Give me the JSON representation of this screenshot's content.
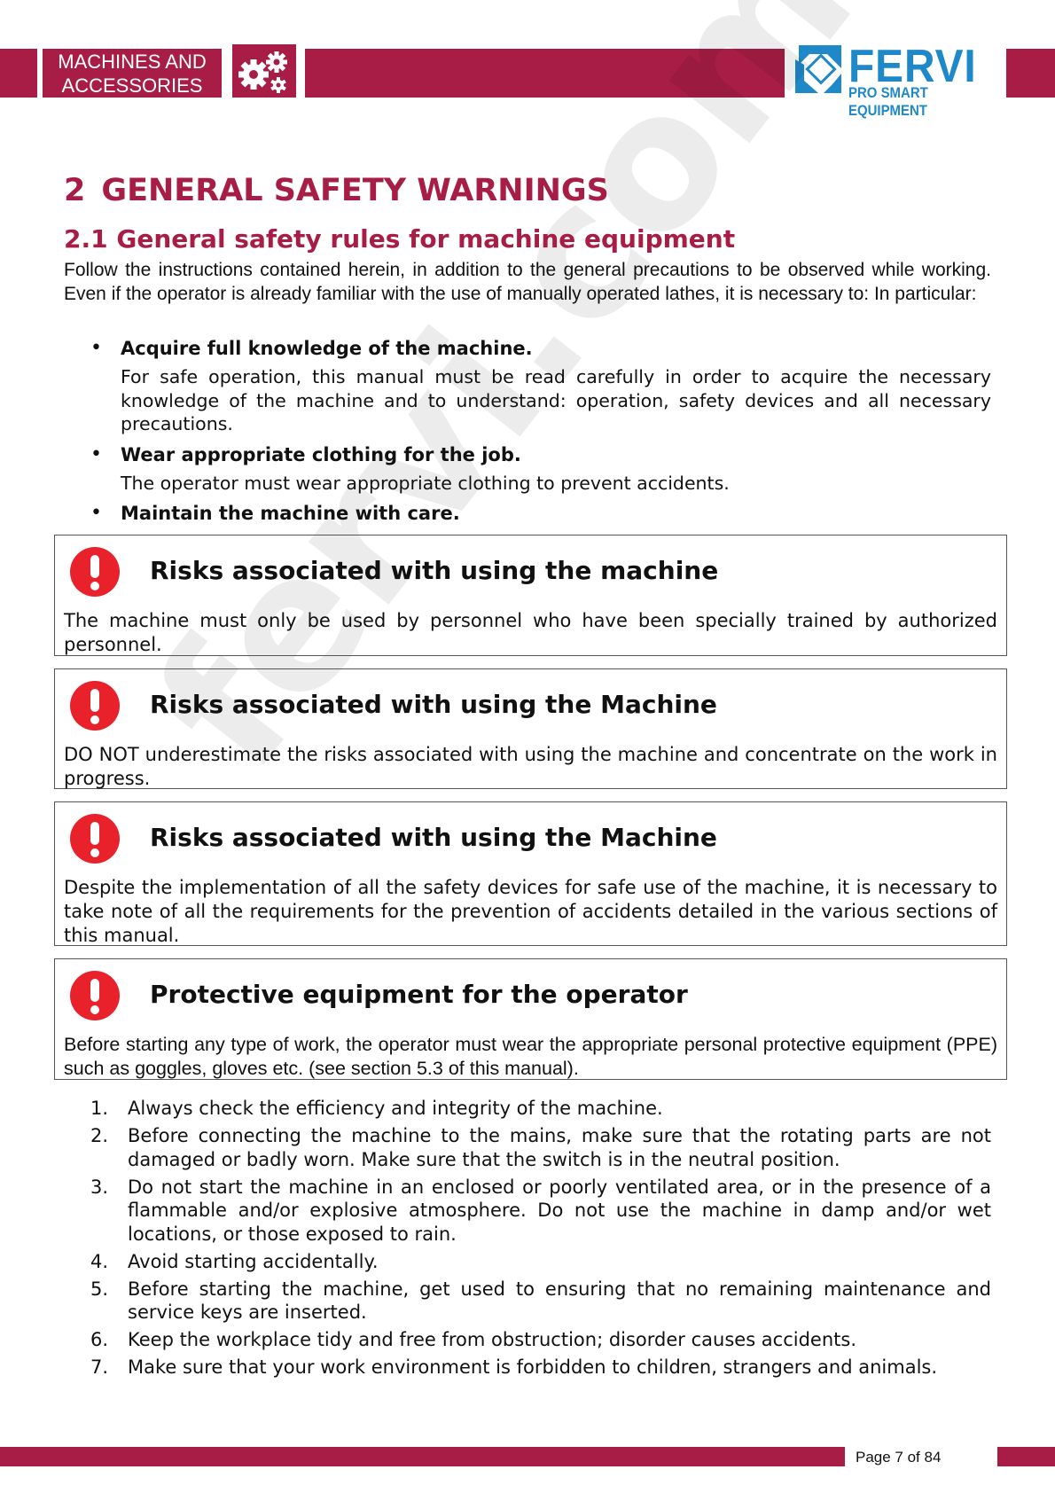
{
  "header": {
    "section_label_line1": "MACHINES AND",
    "section_label_line2": "ACCESSORIES",
    "gear_icon": "gears-icon",
    "logo": {
      "brand": "FERVI",
      "tagline": "PRO SMART EQUIPMENT"
    },
    "colors": {
      "band": "#a81d45",
      "logo_blue": "#1e88c8"
    }
  },
  "watermark": "fervi.com",
  "chapter": {
    "number": "2",
    "title": "GENERAL SAFETY WARNINGS"
  },
  "section": {
    "title": "2.1 General safety rules for machine equipment"
  },
  "intro": "Follow the instructions contained herein, in addition to the general precautions to be observed while working. Even if the operator is already familiar with the use of manually operated lathes, it is necessary to: In particular:",
  "bullets": [
    {
      "title": "Acquire full knowledge of the machine.",
      "text": "For safe operation, this manual must be read carefully in order to acquire the necessary knowledge of the machine and to understand: operation, safety devices and all necessary precautions."
    },
    {
      "title": "Wear appropriate clothing for the job.",
      "text": "The operator must wear appropriate clothing to prevent accidents."
    },
    {
      "title": "Maintain the machine with care.",
      "text": ""
    }
  ],
  "warnings": [
    {
      "icon": "exclamation-icon",
      "title": "Risks associated with using the machine",
      "body": "The machine must only be used by personnel who have been specially trained by authorized personnel."
    },
    {
      "icon": "exclamation-icon",
      "title": "Risks associated with using the Machine",
      "body": "DO NOT underestimate the risks associated with using the machine and concentrate on the work in progress."
    },
    {
      "icon": "exclamation-icon",
      "title": "Risks associated with using the Machine",
      "body": "Despite the implementation of all the safety devices for safe use of the machine, it is necessary to take note of all the requirements for the prevention of accidents detailed in the various sections of this manual."
    },
    {
      "icon": "exclamation-icon",
      "title": "Protective equipment for the operator",
      "body": "Before starting any type of work, the operator must wear the appropriate personal protective equipment (PPE) such as goggles, gloves etc. (see section 5.3 of this manual)."
    }
  ],
  "steps": [
    {
      "n": "1.",
      "text": "Always check the efficiency and integrity of the machine."
    },
    {
      "n": "2.",
      "text": "Before connecting the machine to the mains, make sure that the rotating parts are not damaged or badly worn. Make sure that the switch is in the neutral position."
    },
    {
      "n": "3.",
      "text": "Do not start the machine in an enclosed or poorly ventilated area, or in the presence of a flammable and/or explosive atmosphere. Do not use the machine in damp and/or wet locations, or those exposed to rain."
    },
    {
      "n": "4.",
      "text": "Avoid starting accidentally."
    },
    {
      "n": "5.",
      "text": "Before starting the machine, get used to ensuring that no remaining maintenance and service keys are inserted."
    },
    {
      "n": "6.",
      "text": "Keep the workplace tidy and free from obstruction; disorder causes accidents."
    },
    {
      "n": "7.",
      "text": "Make sure that your work environment is forbidden to children, strangers and animals."
    }
  ],
  "footer": {
    "page": "Page 7 of 84"
  }
}
